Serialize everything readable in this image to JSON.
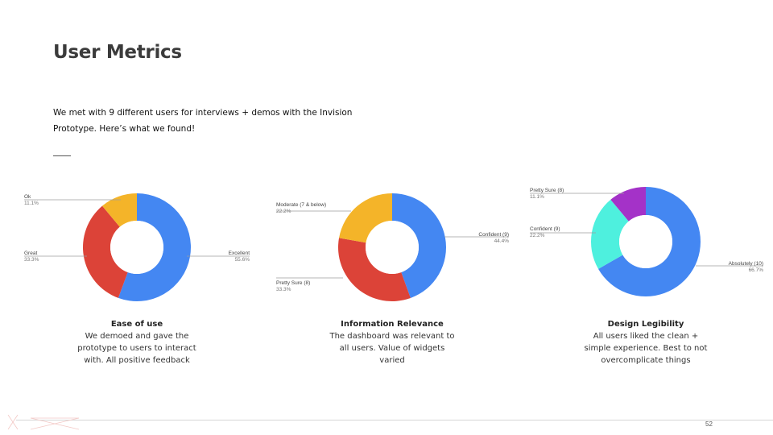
{
  "slide": {
    "title": "User Metrics",
    "intro_line1": "We met with 9 different users for interviews + demos with the Invision",
    "intro_line2": "Prototype. Here’s what we found!",
    "page_number": "52"
  },
  "chart_data": [
    {
      "type": "pie",
      "donut": true,
      "caption_title": "Ease of use",
      "caption_lines": [
        "We demoed and gave the",
        "prototype to users to interact",
        "with. All positive feedback"
      ],
      "slices": [
        {
          "label": "Excellent",
          "pct_label": "55.6%",
          "value": 55.6,
          "color": "#4487f2"
        },
        {
          "label": "Great",
          "pct_label": "33.3%",
          "value": 33.3,
          "color": "#dc4338"
        },
        {
          "label": "Ok",
          "pct_label": "11.1%",
          "value": 11.1,
          "color": "#f4b429"
        }
      ]
    },
    {
      "type": "pie",
      "donut": true,
      "caption_title": "Information Relevance",
      "caption_lines": [
        "The dashboard was relevant to",
        "all users. Value of widgets",
        "varied"
      ],
      "slices": [
        {
          "label": "Confident (9)",
          "pct_label": "44.4%",
          "value": 44.4,
          "color": "#4487f2"
        },
        {
          "label": "Pretty Sure (8)",
          "pct_label": "33.3%",
          "value": 33.3,
          "color": "#dc4338"
        },
        {
          "label": "Moderate (7 & below)",
          "pct_label": "22.2%",
          "value": 22.2,
          "color": "#f4b429"
        }
      ]
    },
    {
      "type": "pie",
      "donut": true,
      "caption_title": "Design Legibility",
      "caption_lines": [
        "All users liked the clean +",
        "simple experience. Best to not",
        "overcomplicate things"
      ],
      "slices": [
        {
          "label": "Absolutely (10)",
          "pct_label": "66.7%",
          "value": 66.7,
          "color": "#4487f2"
        },
        {
          "label": "Confident (9)",
          "pct_label": "22.2%",
          "value": 22.2,
          "color": "#4ef0de"
        },
        {
          "label": "Pretty Sure (8)",
          "pct_label": "11.1%",
          "value": 11.1,
          "color": "#a432c8"
        }
      ]
    }
  ]
}
